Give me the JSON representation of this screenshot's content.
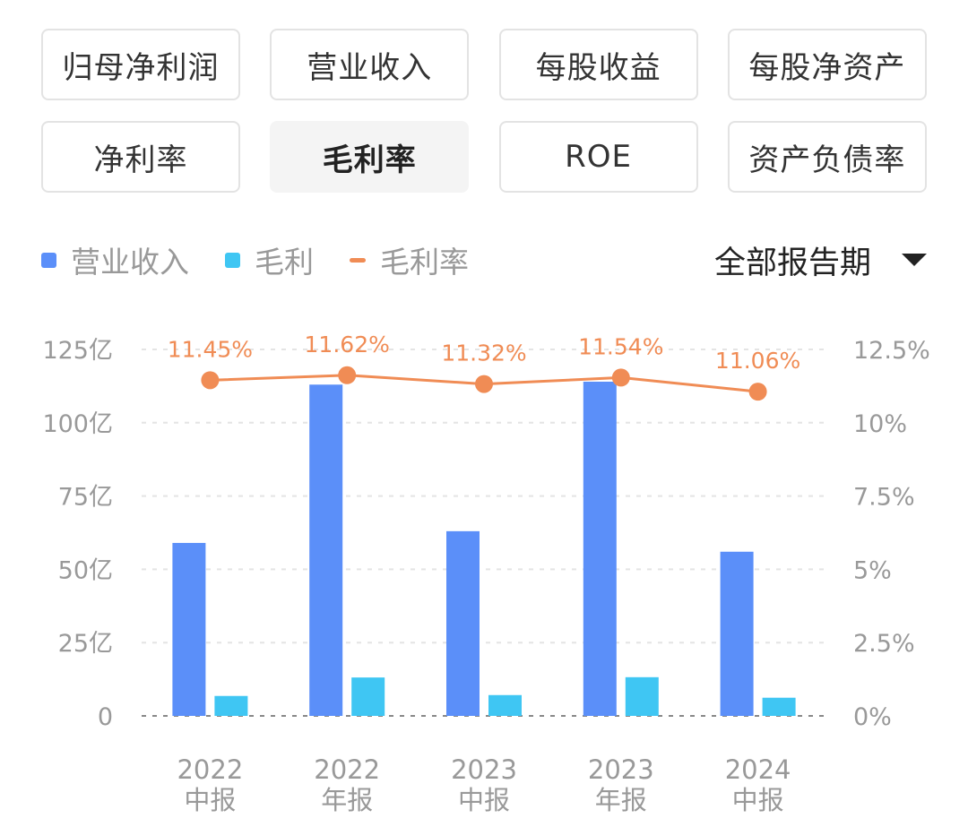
{
  "tabs": [
    {
      "label": "归母净利润",
      "active": false
    },
    {
      "label": "营业收入",
      "active": false
    },
    {
      "label": "每股收益",
      "active": false
    },
    {
      "label": "每股净资产",
      "active": false
    },
    {
      "label": "净利率",
      "active": false
    },
    {
      "label": "毛利率",
      "active": true
    },
    {
      "label": "ROE",
      "active": false
    },
    {
      "label": "资产负债率",
      "active": false
    }
  ],
  "legend": [
    {
      "name": "营业收入",
      "color": "#5b8ff9",
      "shape": "square"
    },
    {
      "name": "毛利",
      "color": "#3fc6f3",
      "shape": "square"
    },
    {
      "name": "毛利率",
      "color": "#f08c55",
      "shape": "line"
    }
  ],
  "period_selector": {
    "label": "全部报告期",
    "icon": "caret-down-icon"
  },
  "chart_data": {
    "type": "bar",
    "categories": [
      [
        "2022",
        "中报"
      ],
      [
        "2022",
        "年报"
      ],
      [
        "2023",
        "中报"
      ],
      [
        "2023",
        "年报"
      ],
      [
        "2024",
        "中报"
      ]
    ],
    "series": [
      {
        "name": "营业收入",
        "type": "bar",
        "axis": "left",
        "color": "#5b8ff9",
        "values": [
          59,
          113,
          63,
          114,
          56
        ]
      },
      {
        "name": "毛利",
        "type": "bar",
        "axis": "left",
        "color": "#3fc6f3",
        "values": [
          6.8,
          13.1,
          7.1,
          13.2,
          6.2
        ]
      },
      {
        "name": "毛利率",
        "type": "line",
        "axis": "right",
        "color": "#f08c55",
        "values": [
          11.45,
          11.62,
          11.32,
          11.54,
          11.06
        ],
        "labels": [
          "11.45%",
          "11.62%",
          "11.32%",
          "11.54%",
          "11.06%"
        ]
      }
    ],
    "y_left": {
      "range": [
        0,
        125
      ],
      "ticks": [
        0,
        25,
        50,
        75,
        100,
        125
      ],
      "tick_labels": [
        "0",
        "25亿",
        "50亿",
        "75亿",
        "100亿",
        "125亿"
      ]
    },
    "y_right": {
      "range": [
        0,
        12.5
      ],
      "ticks": [
        0,
        2.5,
        5,
        7.5,
        10,
        12.5
      ],
      "tick_labels": [
        "0%",
        "2.5%",
        "5%",
        "7.5%",
        "10%",
        "12.5%"
      ]
    },
    "grid": true,
    "legend_position": "top-left"
  }
}
